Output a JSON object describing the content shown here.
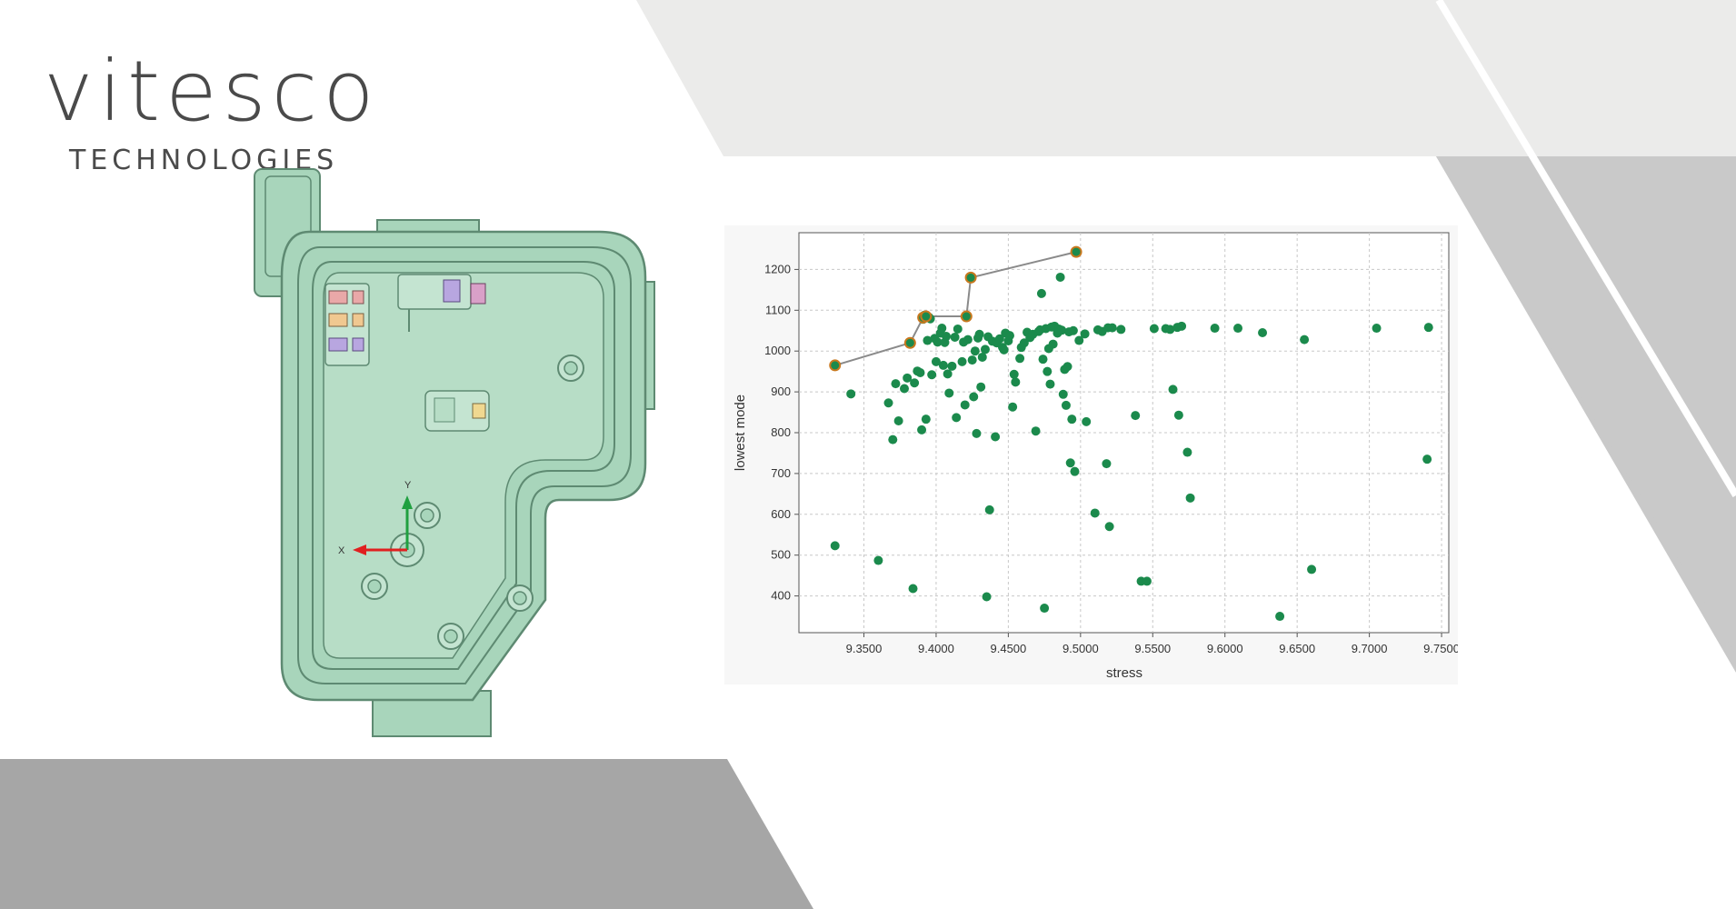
{
  "brand": {
    "name": "vitesco",
    "subtitle": "TECHNOLOGIES"
  },
  "colors": {
    "light_gray_band": "#ebebea",
    "mid_gray_band": "#c9c9c9",
    "dark_gray_band": "#a6a6a6",
    "part_fill": "#a8d5bb",
    "part_edge": "#5e8a72",
    "point_color": "#1b8a4c",
    "front_line": "#8a8a8a",
    "front_marker_edge": "#c8781e",
    "axis_x_color": "#e02020",
    "axis_y_color": "#20a040"
  },
  "cad_view": {
    "axis_x_label": "X",
    "axis_y_label": "Y"
  },
  "chart_data": {
    "type": "scatter",
    "title": "",
    "xlabel": "stress",
    "ylabel": "lowest mode",
    "xlim": [
      9.305,
      9.755
    ],
    "ylim": [
      310,
      1290
    ],
    "grid": true,
    "xticks": [
      "9.3500",
      "9.4000",
      "9.4500",
      "9.5000",
      "9.5500",
      "9.6000",
      "9.6500",
      "9.7000",
      "9.7500"
    ],
    "yticks": [
      "400",
      "500",
      "600",
      "700",
      "800",
      "900",
      "1000",
      "1100",
      "1200"
    ],
    "series": [
      {
        "points": [
          [
            9.33,
            523
          ],
          [
            9.341,
            895
          ],
          [
            9.36,
            487
          ],
          [
            9.367,
            873
          ],
          [
            9.37,
            783
          ],
          [
            9.372,
            920
          ],
          [
            9.374,
            829
          ],
          [
            9.378,
            908
          ],
          [
            9.38,
            934
          ],
          [
            9.382,
            1020
          ],
          [
            9.384,
            418
          ],
          [
            9.385,
            922
          ],
          [
            9.387,
            951
          ],
          [
            9.389,
            947
          ],
          [
            9.39,
            807
          ],
          [
            9.391,
            1078
          ],
          [
            9.392,
            1088
          ],
          [
            9.393,
            833
          ],
          [
            9.394,
            1026
          ],
          [
            9.395,
            1083
          ],
          [
            9.396,
            1079
          ],
          [
            9.397,
            942
          ],
          [
            9.399,
            1031
          ],
          [
            9.4,
            974
          ],
          [
            9.401,
            1022
          ],
          [
            9.403,
            1044
          ],
          [
            9.404,
            1056
          ],
          [
            9.405,
            965
          ],
          [
            9.406,
            1021
          ],
          [
            9.407,
            1036
          ],
          [
            9.408,
            944
          ],
          [
            9.409,
            897
          ],
          [
            9.411,
            963
          ],
          [
            9.413,
            1034
          ],
          [
            9.414,
            837
          ],
          [
            9.415,
            1054
          ],
          [
            9.418,
            974
          ],
          [
            9.419,
            1022
          ],
          [
            9.42,
            868
          ],
          [
            9.421,
            1086
          ],
          [
            9.422,
            1028
          ],
          [
            9.424,
            1180
          ],
          [
            9.425,
            978
          ],
          [
            9.426,
            888
          ],
          [
            9.427,
            1000
          ],
          [
            9.428,
            798
          ],
          [
            9.429,
            1032
          ],
          [
            9.43,
            1041
          ],
          [
            9.431,
            912
          ],
          [
            9.432,
            985
          ],
          [
            9.434,
            1004
          ],
          [
            9.435,
            398
          ],
          [
            9.436,
            1035
          ],
          [
            9.437,
            611
          ],
          [
            9.439,
            1024
          ],
          [
            9.441,
            790
          ],
          [
            9.442,
            1020
          ],
          [
            9.444,
            1030
          ],
          [
            9.446,
            1009
          ],
          [
            9.447,
            1003
          ],
          [
            9.448,
            1044
          ],
          [
            9.45,
            1025
          ],
          [
            9.451,
            1038
          ],
          [
            9.453,
            863
          ],
          [
            9.454,
            943
          ],
          [
            9.455,
            924
          ],
          [
            9.458,
            982
          ],
          [
            9.459,
            1009
          ],
          [
            9.461,
            1020
          ],
          [
            9.463,
            1046
          ],
          [
            9.465,
            1033
          ],
          [
            9.467,
            1041
          ],
          [
            9.469,
            804
          ],
          [
            9.471,
            1048
          ],
          [
            9.472,
            1052
          ],
          [
            9.473,
            1141
          ],
          [
            9.474,
            980
          ],
          [
            9.475,
            370
          ],
          [
            9.476,
            1055
          ],
          [
            9.477,
            950
          ],
          [
            9.478,
            1006
          ],
          [
            9.479,
            919
          ],
          [
            9.48,
            1059
          ],
          [
            9.481,
            1017
          ],
          [
            9.482,
            1061
          ],
          [
            9.484,
            1044
          ],
          [
            9.485,
            1054
          ],
          [
            9.486,
            1181
          ],
          [
            9.487,
            1051
          ],
          [
            9.488,
            894
          ],
          [
            9.489,
            955
          ],
          [
            9.49,
            867
          ],
          [
            9.491,
            962
          ],
          [
            9.492,
            1047
          ],
          [
            9.493,
            726
          ],
          [
            9.494,
            833
          ],
          [
            9.495,
            1050
          ],
          [
            9.496,
            705
          ],
          [
            9.497,
            1243
          ],
          [
            9.499,
            1026
          ],
          [
            9.503,
            1042
          ],
          [
            9.504,
            827
          ],
          [
            9.51,
            603
          ],
          [
            9.512,
            1052
          ],
          [
            9.515,
            1048
          ],
          [
            9.518,
            724
          ],
          [
            9.519,
            1057
          ],
          [
            9.52,
            570
          ],
          [
            9.522,
            1057
          ],
          [
            9.528,
            1053
          ],
          [
            9.538,
            842
          ],
          [
            9.542,
            436
          ],
          [
            9.546,
            436
          ],
          [
            9.551,
            1055
          ],
          [
            9.559,
            1055
          ],
          [
            9.562,
            1053
          ],
          [
            9.564,
            906
          ],
          [
            9.567,
            1058
          ],
          [
            9.568,
            843
          ],
          [
            9.57,
            1061
          ],
          [
            9.574,
            752
          ],
          [
            9.576,
            640
          ],
          [
            9.593,
            1056
          ],
          [
            9.609,
            1056
          ],
          [
            9.626,
            1045
          ],
          [
            9.638,
            350
          ],
          [
            9.655,
            1028
          ],
          [
            9.66,
            465
          ],
          [
            9.705,
            1056
          ],
          [
            9.74,
            735
          ],
          [
            9.741,
            1058
          ]
        ]
      },
      {
        "points": [
          [
            9.33,
            965
          ],
          [
            9.382,
            1020
          ],
          [
            9.391,
            1082
          ],
          [
            9.393,
            1085
          ],
          [
            9.421,
            1085
          ],
          [
            9.424,
            1180
          ],
          [
            9.497,
            1243
          ]
        ]
      }
    ]
  }
}
